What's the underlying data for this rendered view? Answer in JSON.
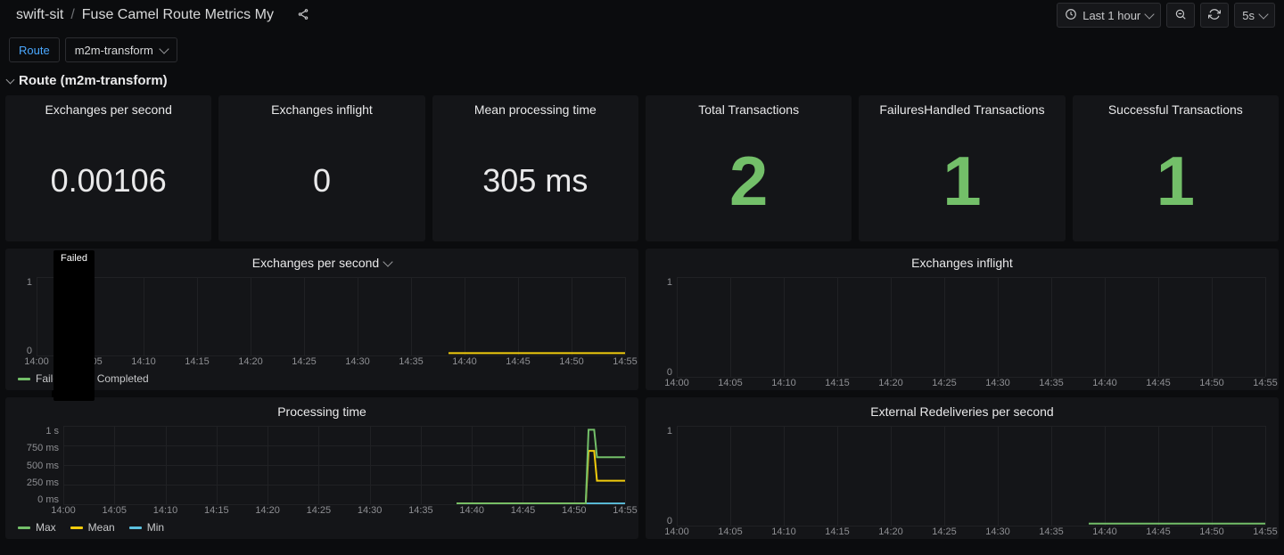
{
  "colors": {
    "bg": "#0b0c0e",
    "panel": "#141518",
    "text": "#d8d9da",
    "accent_green": "#73bf69",
    "series_green": "#73bf69",
    "series_yellow": "#f2cc0c",
    "series_cyan": "#5bc0de",
    "link_blue": "#4aa8ff",
    "grid": "#202124"
  },
  "breadcrumb": {
    "icon": "dashboard",
    "segments": [
      "swift-sit",
      "Fuse Camel Route Metrics My"
    ]
  },
  "timepicker": {
    "label": "Last 1 hour"
  },
  "refresh": {
    "on": true,
    "interval": "5s"
  },
  "variables": {
    "label": "Route",
    "selected": "m2m-transform"
  },
  "section": {
    "title": "Route (m2m-transform)"
  },
  "stat_panels": [
    {
      "title": "Exchanges per second",
      "value": "0.00106",
      "size": "normal"
    },
    {
      "title": "Exchanges inflight",
      "value": "0",
      "size": "normal"
    },
    {
      "title": "Mean processing time",
      "value": "305 ms",
      "size": "normal"
    },
    {
      "title": "Total Transactions",
      "value": "2",
      "size": "big"
    },
    {
      "title": "FailuresHandled Transactions",
      "value": "1",
      "size": "big"
    },
    {
      "title": "Successful Transactions",
      "value": "1",
      "size": "big"
    }
  ],
  "x_ticks": [
    "14:00",
    "14:05",
    "14:10",
    "14:15",
    "14:20",
    "14:25",
    "14:30",
    "14:35",
    "14:40",
    "14:45",
    "14:50",
    "14:55"
  ],
  "charts": {
    "eps": {
      "title": "Exchanges per second",
      "has_dropdown": true,
      "y_ticks": [
        "1",
        "0"
      ],
      "y_narrow": true,
      "legend": [
        {
          "label": "Failed",
          "color": "#73bf69"
        },
        {
          "label": "Completed",
          "color": "#f2cc0c"
        }
      ],
      "lines": [
        {
          "color": "#f2cc0c",
          "points": [
            [
              0.7,
              0.97
            ],
            [
              1.0,
              0.97
            ]
          ]
        }
      ],
      "tooltip": "Failed"
    },
    "inflight": {
      "title": "Exchanges inflight",
      "y_ticks": [
        "1",
        "0"
      ],
      "y_narrow": true,
      "legend": [],
      "lines": []
    },
    "processing": {
      "title": "Processing time",
      "y_ticks": [
        "1 s",
        "750 ms",
        "500 ms",
        "250 ms",
        "0 ms"
      ],
      "y_narrow": false,
      "legend": [
        {
          "label": "Max",
          "color": "#73bf69"
        },
        {
          "label": "Mean",
          "color": "#f2cc0c"
        },
        {
          "label": "Min",
          "color": "#5bc0de"
        }
      ],
      "lines": [
        {
          "color": "#5bc0de",
          "points": [
            [
              0.7,
              0.99
            ],
            [
              1.0,
              0.99
            ]
          ]
        },
        {
          "color": "#f2cc0c",
          "points": [
            [
              0.7,
              0.99
            ],
            [
              0.93,
              0.99
            ],
            [
              0.935,
              0.32
            ],
            [
              0.945,
              0.32
            ],
            [
              0.95,
              0.7
            ],
            [
              1.0,
              0.7
            ]
          ]
        },
        {
          "color": "#73bf69",
          "points": [
            [
              0.7,
              0.99
            ],
            [
              0.93,
              0.99
            ],
            [
              0.935,
              0.05
            ],
            [
              0.945,
              0.05
            ],
            [
              0.95,
              0.4
            ],
            [
              1.0,
              0.4
            ]
          ]
        }
      ]
    },
    "redeliveries": {
      "title": "External Redeliveries per second",
      "y_ticks": [
        "1",
        "0"
      ],
      "y_narrow": true,
      "legend": [],
      "lines": [
        {
          "color": "#73bf69",
          "points": [
            [
              0.7,
              0.98
            ],
            [
              1.0,
              0.98
            ]
          ]
        }
      ]
    }
  }
}
